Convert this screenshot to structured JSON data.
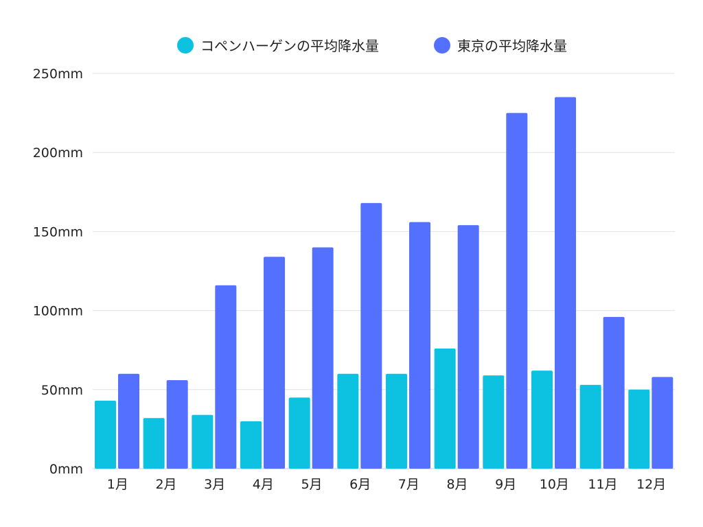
{
  "chart_data": {
    "type": "bar",
    "title": "",
    "xlabel": "",
    "ylabel": "",
    "categories": [
      "1月",
      "2月",
      "3月",
      "4月",
      "5月",
      "6月",
      "7月",
      "8月",
      "9月",
      "10月",
      "11月",
      "12月"
    ],
    "series": [
      {
        "name": "コペンハーゲンの平均降水量",
        "color": "#0cc2e0",
        "values": [
          43,
          32,
          34,
          30,
          45,
          60,
          60,
          76,
          59,
          62,
          53,
          50
        ]
      },
      {
        "name": "東京の平均降水量",
        "color": "#5470ff",
        "values": [
          60,
          56,
          116,
          134,
          140,
          168,
          156,
          154,
          225,
          235,
          96,
          58
        ]
      }
    ],
    "ylim": [
      0,
      250
    ],
    "yticks": [
      0,
      50,
      100,
      150,
      200,
      250
    ],
    "ytick_labels": [
      "0mm",
      "50mm",
      "100mm",
      "150mm",
      "200mm",
      "250mm"
    ],
    "grid": true,
    "legend_position": "top-center"
  }
}
